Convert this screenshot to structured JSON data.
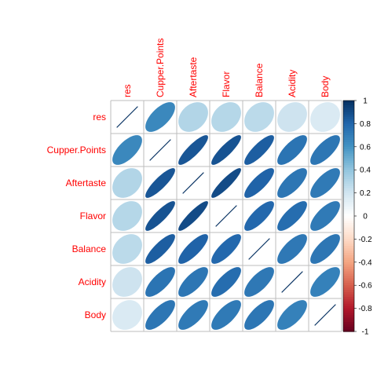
{
  "chart_data": {
    "type": "heatmap",
    "method": "ellipse",
    "variables": [
      "res",
      "Cupper.Points",
      "Aftertaste",
      "Flavor",
      "Balance",
      "Acidity",
      "Body"
    ],
    "matrix": [
      [
        1.0,
        0.65,
        0.3,
        0.29,
        0.27,
        0.21,
        0.16
      ],
      [
        0.65,
        1.0,
        0.86,
        0.87,
        0.83,
        0.74,
        0.73
      ],
      [
        0.3,
        0.86,
        1.0,
        0.9,
        0.81,
        0.73,
        0.71
      ],
      [
        0.29,
        0.87,
        0.9,
        1.0,
        0.79,
        0.77,
        0.71
      ],
      [
        0.27,
        0.83,
        0.81,
        0.79,
        1.0,
        0.72,
        0.73
      ],
      [
        0.21,
        0.74,
        0.73,
        0.77,
        0.72,
        1.0,
        0.68
      ],
      [
        0.16,
        0.73,
        0.71,
        0.71,
        0.73,
        0.68,
        1.0
      ]
    ],
    "colorbar": {
      "range": [
        -1,
        1
      ],
      "tick_labels": [
        "1",
        "0.8",
        "0.6",
        "0.4",
        "0.2",
        "0",
        "-0.2",
        "-0.4",
        "-0.6",
        "-0.8",
        "-1"
      ]
    },
    "colors": {
      "label": "#ff0000",
      "grid": "#bebebe",
      "positive_max": "#053061",
      "negative_max": "#67001f"
    },
    "legend_position": "right"
  }
}
